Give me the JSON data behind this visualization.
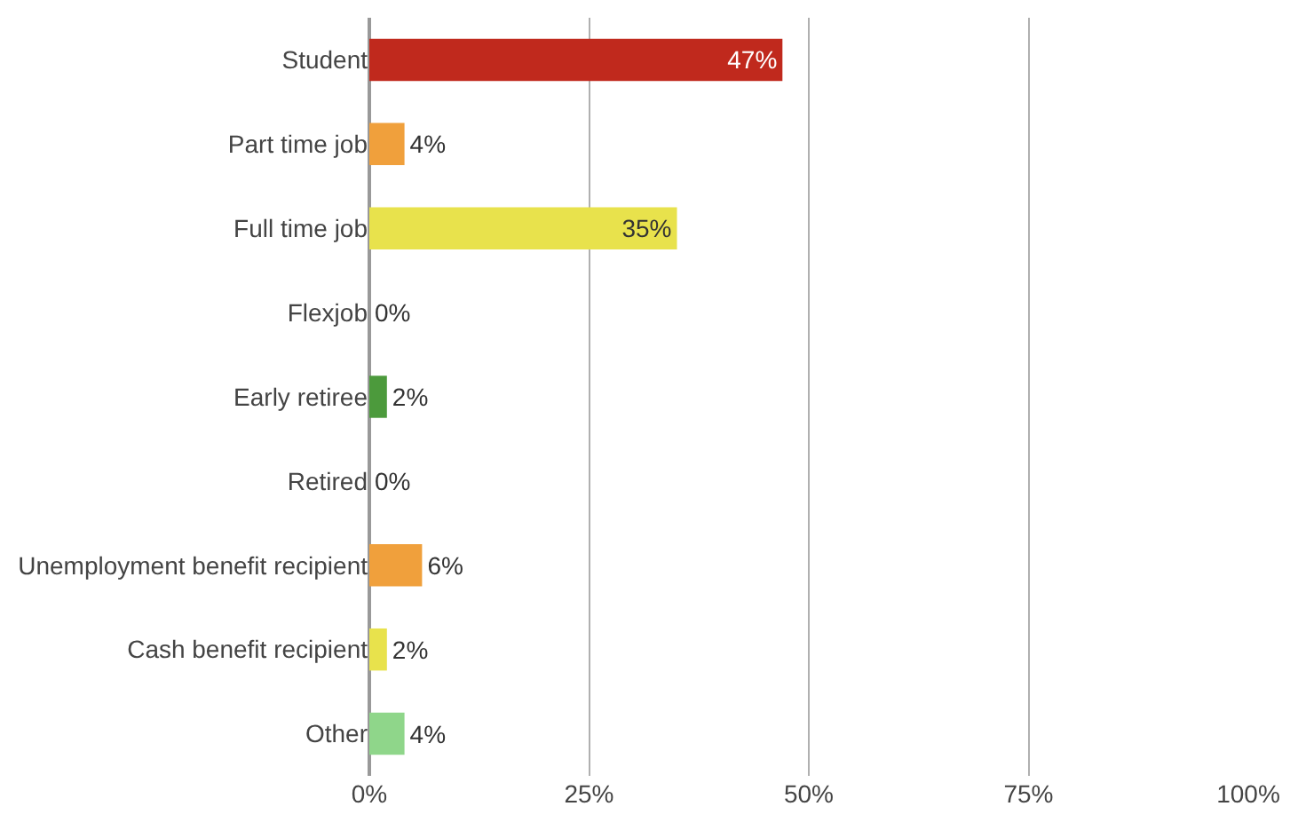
{
  "chart_data": {
    "type": "bar",
    "orientation": "horizontal",
    "categories": [
      "Student",
      "Part time job",
      "Full time job",
      "Flexjob",
      "Early retiree",
      "Retired",
      "Unemployment benefit recipient",
      "Cash benefit recipient",
      "Other"
    ],
    "values": [
      47,
      4,
      35,
      0,
      2,
      0,
      6,
      2,
      4
    ],
    "value_labels": [
      "47%",
      "4%",
      "35%",
      "0%",
      "2%",
      "0%",
      "6%",
      "2%",
      "4%"
    ],
    "colors": [
      "#c0291d",
      "#f0a03c",
      "#e8e24c",
      "#e8e24c",
      "#4c9a3c",
      "#4c9a3c",
      "#f0a03c",
      "#e8e24c",
      "#8fd68a"
    ],
    "xlim": [
      0,
      100
    ],
    "xticks": [
      {
        "value": 0,
        "label": "0%"
      },
      {
        "value": 25,
        "label": "25%"
      },
      {
        "value": 50,
        "label": "50%"
      },
      {
        "value": 75,
        "label": "75%"
      },
      {
        "value": 100,
        "label": "100%"
      }
    ],
    "grid": "x",
    "legend": false
  }
}
